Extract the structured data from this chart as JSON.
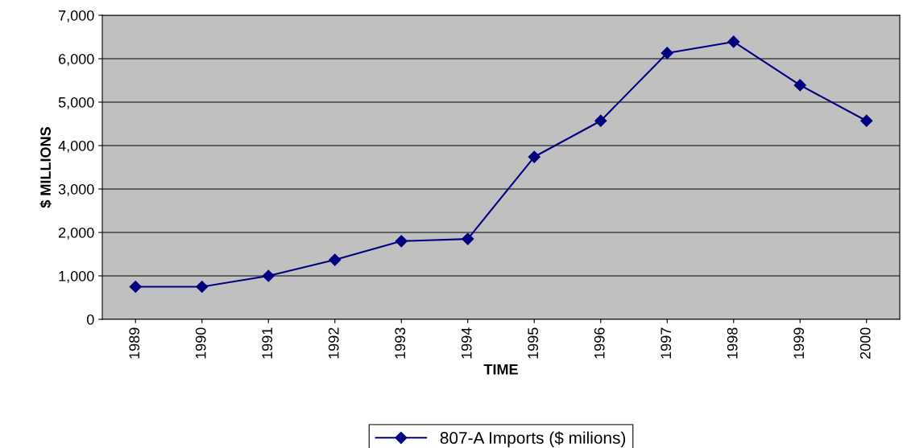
{
  "chart_data": {
    "type": "line",
    "xlabel": "TIME",
    "ylabel": "$ MILLIONS",
    "categories": [
      "1989",
      "1990",
      "1991",
      "1992",
      "1993",
      "1994",
      "1995",
      "1996",
      "1997",
      "1998",
      "1999",
      "2000"
    ],
    "series": [
      {
        "name": "807-A Imports ($ milions)",
        "color": "#000080",
        "values": [
          750,
          750,
          1000,
          1370,
          1800,
          1850,
          3740,
          4570,
          6130,
          6390,
          5390,
          4570
        ]
      }
    ],
    "ylim": [
      0,
      7000
    ],
    "yticks": [
      {
        "value": 0,
        "label": "0"
      },
      {
        "value": 1000,
        "label": "1,000"
      },
      {
        "value": 2000,
        "label": "2,000"
      },
      {
        "value": 3000,
        "label": "3,000"
      },
      {
        "value": 4000,
        "label": "4,000"
      },
      {
        "value": 5000,
        "label": "5,000"
      },
      {
        "value": 6000,
        "label": "6,000"
      },
      {
        "value": 7000,
        "label": "7,000"
      }
    ],
    "grid": "y",
    "legend": "bottom",
    "marker": "diamond",
    "line_style": "solid"
  }
}
